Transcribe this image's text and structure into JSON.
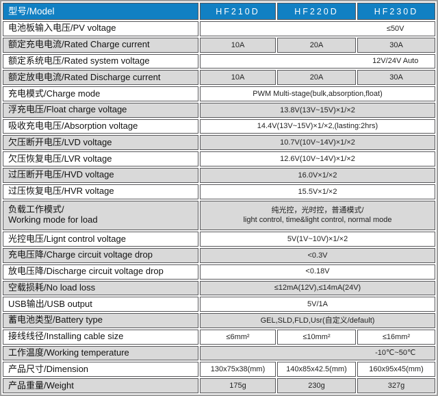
{
  "header": {
    "label": "型号/Model",
    "models": [
      "HF210D",
      "HF220D",
      "HF230D"
    ]
  },
  "rows": [
    {
      "label": "电池板输入电压/PV voltage",
      "value": "≤50V"
    },
    {
      "label": "额定充电电流/Rated Charge current",
      "values": [
        "10A",
        "20A",
        "30A"
      ]
    },
    {
      "label": "额定系统电压/Rated system voltage",
      "value": "12V/24V Auto"
    },
    {
      "label": "额定放电电流/Rated Discharge current",
      "values": [
        "10A",
        "20A",
        "30A"
      ]
    },
    {
      "label": "充电模式/Charge mode",
      "value": "PWM Multi-stage(bulk,absorption,float)"
    },
    {
      "label": "浮充电压/Float charge voltage",
      "value": "13.8V(13V~15V)×1/×2"
    },
    {
      "label": "吸收充电电压/Absorption voltage",
      "value": "14.4V(13V~15V)×1/×2,(lasting:2hrs)"
    },
    {
      "label": "欠压断开电压/LVD voltage",
      "value": "10.7V(10V~14V)×1/×2"
    },
    {
      "label": "欠压恢复电压/LVR voltage",
      "value": "12.6V(10V~14V)×1/×2"
    },
    {
      "label": "过压断开电压/HVD voltage",
      "value": "16.0V×1/×2"
    },
    {
      "label": "过压恢复电压/HVR voltage",
      "value": "15.5V×1/×2"
    },
    {
      "label": "负载工作模式/\nWorking mode for load",
      "value": "纯光控，光时控，普通模式/\nlight control, time&light control, normal mode"
    },
    {
      "label": "光控电压/Lignt control voltage",
      "value": "5V(1V~10V)×1/×2"
    },
    {
      "label": "充电压降/Charge circuit voltage drop",
      "value": "<0.3V"
    },
    {
      "label": "放电压降/Discharge circuit voltage drop",
      "value": "<0.18V"
    },
    {
      "label": "空载损耗/No load loss",
      "value": "≤12mA(12V),≤14mA(24V)"
    },
    {
      "label": "USB输出/USB output",
      "value": "5V/1A"
    },
    {
      "label": "蓄电池类型/Battery type",
      "value": "GEL,SLD,FLD,Usr(自定义/default)"
    },
    {
      "label": "接线线径/Installing cable size",
      "values": [
        "≤6mm²",
        "≤10mm²",
        "≤16mm²"
      ]
    },
    {
      "label": "工作温度/Working temperature",
      "value": "-10℃~50℃"
    },
    {
      "label": "产品尺寸/Dimension",
      "values": [
        "130x75x38(mm)",
        "140x85x42.5(mm)",
        "160x95x45(mm)"
      ]
    },
    {
      "label": "产品重量/Weight",
      "values": [
        "175g",
        "230g",
        "327g"
      ]
    }
  ],
  "colors": {
    "header_blue": "#1180c3",
    "row_gray": "#d9d9d9",
    "row_white": "#ffffff",
    "cell_border": "#57575a",
    "outer_border": "#9d9d9d"
  }
}
